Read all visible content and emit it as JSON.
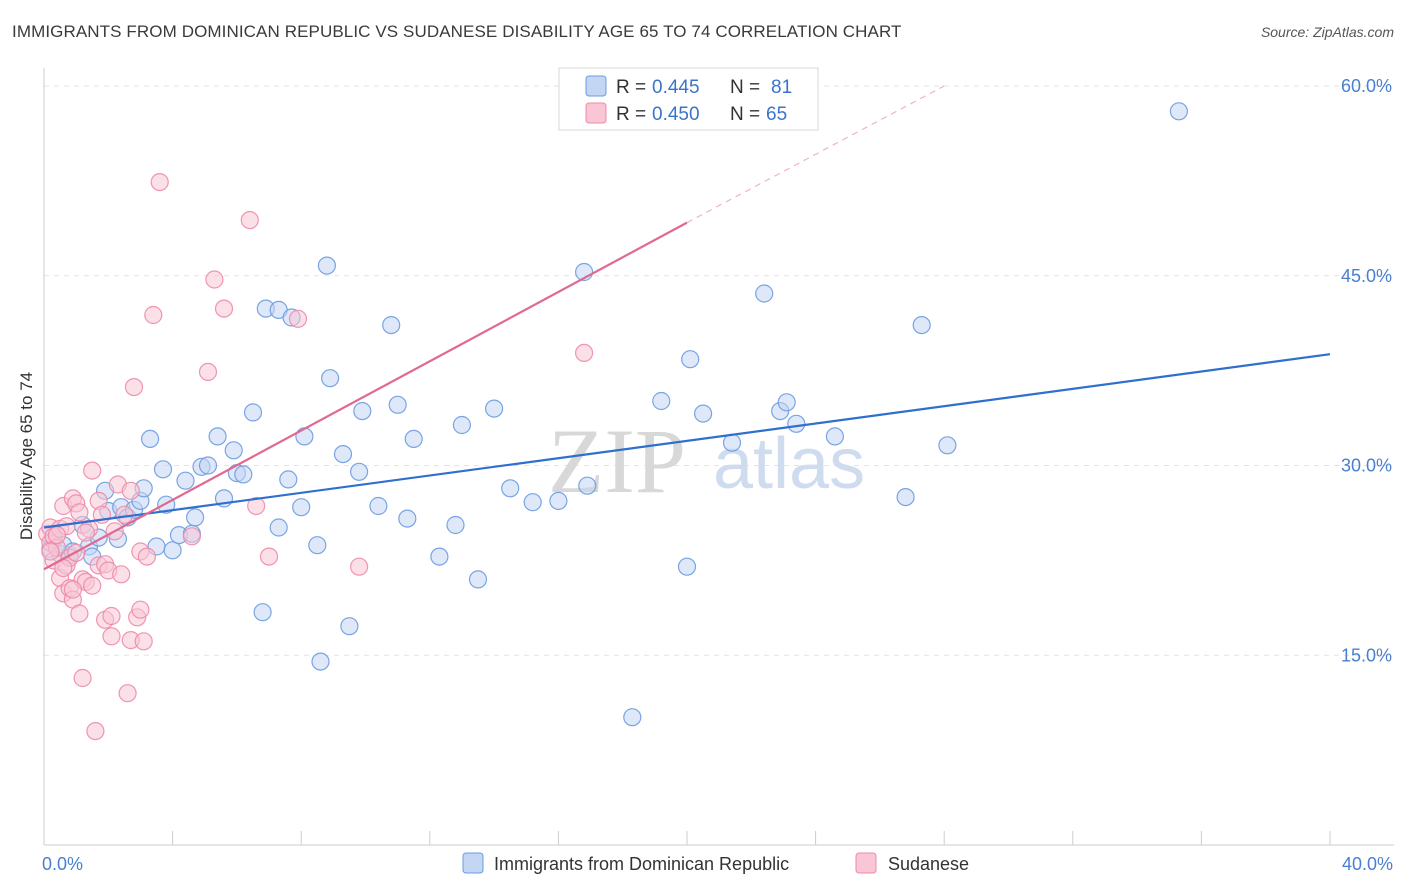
{
  "title": "IMMIGRANTS FROM DOMINICAN REPUBLIC VS SUDANESE DISABILITY AGE 65 TO 74 CORRELATION CHART",
  "source": "Source: ZipAtlas.com",
  "watermark": {
    "zip": "ZIP",
    "atlas": "atlas"
  },
  "chart_data": {
    "type": "scatter",
    "ylabel": "Disability Age 65 to 74",
    "xlim": [
      0,
      40
    ],
    "ylim": [
      0,
      60
    ],
    "x_tick_labels": [
      {
        "value": 0,
        "label": "0.0%"
      },
      {
        "value": 40,
        "label": "40.0%"
      }
    ],
    "y_tick_labels": [
      {
        "value": 15,
        "label": "15.0%"
      },
      {
        "value": 30,
        "label": "30.0%"
      },
      {
        "value": 45,
        "label": "45.0%"
      },
      {
        "value": 60,
        "label": "60.0%"
      }
    ],
    "legend": [
      {
        "r_label": "R = ",
        "r_value": "0.445",
        "n_label": "N = ",
        "n_value": "81"
      },
      {
        "r_label": "R = ",
        "r_value": "0.450",
        "n_label": "N = ",
        "n_value": "65"
      }
    ],
    "series": [
      {
        "name": "Immigrants from Dominican Republic",
        "color": "#6b9be0",
        "fill": "#c3d6f4",
        "trend": {
          "x0": 0,
          "y0": 25.1,
          "x1": 40,
          "y1": 38.8,
          "dashed_to": null
        },
        "points": [
          [
            0.2,
            23.4
          ],
          [
            0.3,
            24.1
          ],
          [
            0.5,
            23.0
          ],
          [
            0.6,
            23.7
          ],
          [
            0.8,
            22.9
          ],
          [
            0.9,
            23.2
          ],
          [
            1.2,
            25.3
          ],
          [
            1.4,
            23.6
          ],
          [
            1.5,
            22.8
          ],
          [
            1.7,
            24.3
          ],
          [
            1.9,
            28.0
          ],
          [
            2.0,
            26.4
          ],
          [
            2.3,
            24.2
          ],
          [
            2.4,
            26.7
          ],
          [
            2.6,
            25.9
          ],
          [
            2.8,
            26.5
          ],
          [
            3.0,
            27.2
          ],
          [
            3.1,
            28.2
          ],
          [
            3.3,
            32.1
          ],
          [
            3.5,
            23.6
          ],
          [
            3.7,
            29.7
          ],
          [
            3.8,
            26.9
          ],
          [
            4.0,
            23.3
          ],
          [
            4.2,
            24.5
          ],
          [
            4.4,
            28.8
          ],
          [
            4.6,
            24.6
          ],
          [
            4.7,
            25.9
          ],
          [
            4.9,
            29.9
          ],
          [
            5.1,
            30.0
          ],
          [
            5.4,
            32.3
          ],
          [
            5.6,
            27.4
          ],
          [
            5.9,
            31.2
          ],
          [
            6.0,
            29.4
          ],
          [
            6.2,
            29.3
          ],
          [
            6.5,
            34.2
          ],
          [
            6.8,
            18.4
          ],
          [
            6.9,
            42.4
          ],
          [
            7.3,
            25.1
          ],
          [
            7.3,
            42.3
          ],
          [
            7.6,
            28.9
          ],
          [
            7.7,
            41.7
          ],
          [
            8.0,
            26.7
          ],
          [
            8.1,
            32.3
          ],
          [
            8.5,
            23.7
          ],
          [
            8.6,
            14.5
          ],
          [
            8.8,
            45.8
          ],
          [
            8.9,
            36.9
          ],
          [
            9.3,
            30.9
          ],
          [
            9.5,
            17.3
          ],
          [
            9.8,
            29.5
          ],
          [
            9.9,
            34.3
          ],
          [
            10.4,
            26.8
          ],
          [
            10.8,
            41.1
          ],
          [
            11.0,
            34.8
          ],
          [
            11.3,
            25.8
          ],
          [
            11.5,
            32.1
          ],
          [
            12.3,
            22.8
          ],
          [
            12.8,
            25.3
          ],
          [
            13.0,
            33.2
          ],
          [
            13.5,
            21.0
          ],
          [
            14.0,
            34.5
          ],
          [
            14.5,
            28.2
          ],
          [
            15.2,
            27.1
          ],
          [
            16.0,
            27.2
          ],
          [
            16.8,
            45.3
          ],
          [
            16.9,
            28.4
          ],
          [
            18.3,
            10.1
          ],
          [
            19.2,
            35.1
          ],
          [
            20.0,
            22.0
          ],
          [
            20.1,
            38.4
          ],
          [
            20.5,
            34.1
          ],
          [
            21.4,
            31.8
          ],
          [
            22.4,
            43.6
          ],
          [
            22.9,
            34.3
          ],
          [
            23.1,
            35.0
          ],
          [
            23.4,
            33.3
          ],
          [
            24.6,
            32.3
          ],
          [
            26.8,
            27.5
          ],
          [
            27.3,
            41.1
          ],
          [
            28.1,
            31.6
          ],
          [
            35.3,
            58.0
          ]
        ]
      },
      {
        "name": "Sudanese",
        "color": "#ee8aa8",
        "fill": "#f8c6d5",
        "trend": {
          "x0": 0,
          "y0": 21.8,
          "x1": 20,
          "y1": 49.2,
          "dashed_to": [
            28.0,
            60.0
          ]
        },
        "points": [
          [
            0.1,
            24.6
          ],
          [
            0.2,
            23.9
          ],
          [
            0.2,
            25.1
          ],
          [
            0.3,
            24.4
          ],
          [
            0.3,
            22.5
          ],
          [
            0.4,
            23.5
          ],
          [
            0.5,
            25.0
          ],
          [
            0.5,
            21.1
          ],
          [
            0.6,
            26.8
          ],
          [
            0.6,
            19.9
          ],
          [
            0.7,
            25.2
          ],
          [
            0.7,
            22.1
          ],
          [
            0.8,
            20.3
          ],
          [
            0.8,
            22.7
          ],
          [
            0.9,
            27.4
          ],
          [
            0.9,
            19.4
          ],
          [
            1.0,
            27.0
          ],
          [
            1.0,
            23.1
          ],
          [
            1.1,
            26.3
          ],
          [
            1.1,
            18.3
          ],
          [
            1.2,
            13.2
          ],
          [
            1.2,
            21.0
          ],
          [
            1.3,
            20.8
          ],
          [
            1.4,
            25.0
          ],
          [
            1.5,
            20.5
          ],
          [
            1.5,
            29.6
          ],
          [
            1.6,
            9.0
          ],
          [
            1.7,
            27.2
          ],
          [
            1.7,
            22.1
          ],
          [
            1.8,
            26.1
          ],
          [
            1.9,
            17.8
          ],
          [
            1.9,
            22.2
          ],
          [
            2.0,
            21.7
          ],
          [
            2.1,
            18.1
          ],
          [
            2.1,
            16.5
          ],
          [
            2.2,
            24.8
          ],
          [
            2.3,
            28.5
          ],
          [
            2.4,
            21.4
          ],
          [
            2.5,
            26.1
          ],
          [
            2.6,
            12.0
          ],
          [
            2.7,
            28.0
          ],
          [
            2.7,
            16.2
          ],
          [
            2.8,
            36.2
          ],
          [
            2.9,
            18.0
          ],
          [
            3.0,
            23.2
          ],
          [
            3.0,
            18.6
          ],
          [
            3.1,
            16.1
          ],
          [
            3.2,
            22.8
          ],
          [
            3.4,
            41.9
          ],
          [
            3.6,
            52.4
          ],
          [
            4.6,
            24.4
          ],
          [
            5.1,
            37.4
          ],
          [
            5.3,
            44.7
          ],
          [
            5.6,
            42.4
          ],
          [
            6.4,
            49.4
          ],
          [
            6.6,
            26.8
          ],
          [
            7.0,
            22.8
          ],
          [
            7.9,
            41.6
          ],
          [
            9.8,
            22.0
          ],
          [
            16.8,
            38.9
          ],
          [
            0.2,
            23.2
          ],
          [
            0.4,
            24.5
          ],
          [
            0.6,
            21.9
          ],
          [
            0.9,
            20.2
          ],
          [
            1.3,
            24.7
          ]
        ]
      }
    ]
  }
}
